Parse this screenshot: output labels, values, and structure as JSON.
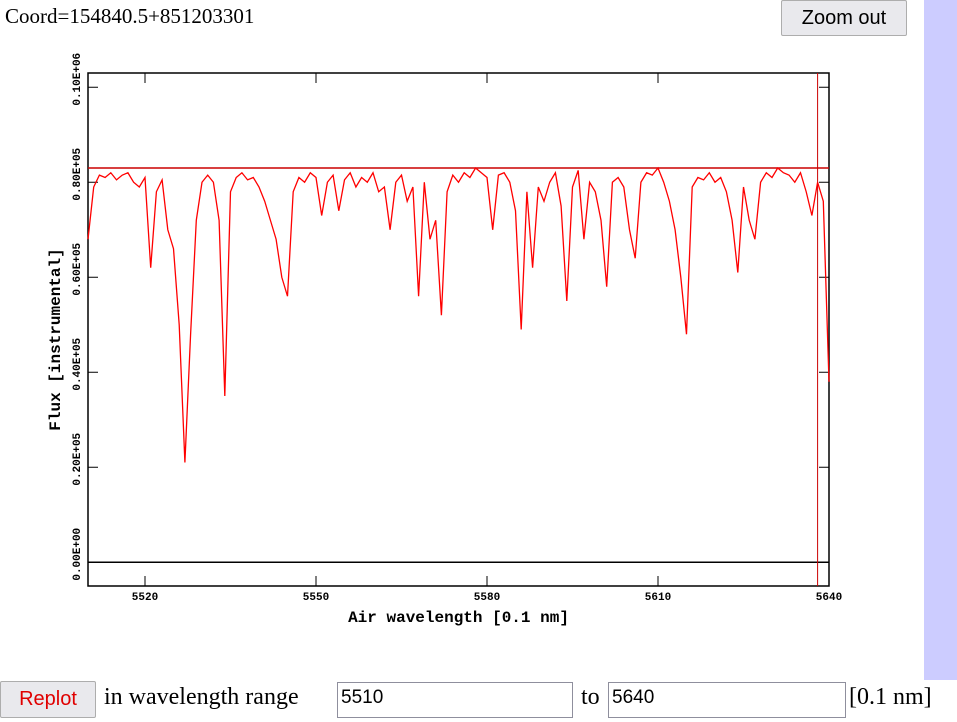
{
  "header": {
    "coord": "Coord=154840.5+851203301",
    "zoom_button": "Zoom out"
  },
  "chart_data": {
    "type": "line",
    "x_label": "Air wavelength [0.1 nm]",
    "y_label": "Flux [instrumental]",
    "x": [
      5510,
      5511,
      5512,
      5513,
      5514,
      5515,
      5516,
      5517,
      5518,
      5519,
      5520,
      5521,
      5522,
      5523,
      5524,
      5525,
      5526,
      5527,
      5528,
      5529,
      5530,
      5531,
      5532,
      5533,
      5534,
      5535,
      5536,
      5537,
      5538,
      5539,
      5540,
      5541,
      5542,
      5543,
      5544,
      5545,
      5546,
      5547,
      5548,
      5549,
      5550,
      5551,
      5552,
      5553,
      5554,
      5555,
      5556,
      5557,
      5558,
      5559,
      5560,
      5561,
      5562,
      5563,
      5564,
      5565,
      5566,
      5567,
      5568,
      5569,
      5570,
      5571,
      5572,
      5573,
      5574,
      5575,
      5576,
      5577,
      5578,
      5579,
      5580,
      5581,
      5582,
      5583,
      5584,
      5585,
      5586,
      5587,
      5588,
      5589,
      5590,
      5591,
      5592,
      5593,
      5594,
      5595,
      5596,
      5597,
      5598,
      5599,
      5600,
      5601,
      5602,
      5603,
      5604,
      5605,
      5606,
      5607,
      5608,
      5609,
      5610,
      5611,
      5612,
      5613,
      5614,
      5615,
      5616,
      5617,
      5618,
      5619,
      5620,
      5621,
      5622,
      5623,
      5624,
      5625,
      5626,
      5627,
      5628,
      5629,
      5630,
      5631,
      5632,
      5633,
      5634,
      5635,
      5636,
      5637,
      5638,
      5639,
      5640
    ],
    "series": [
      {
        "color": "#ff0000",
        "values": [
          68000,
          79000,
          81500,
          81000,
          82000,
          80500,
          81500,
          82000,
          80000,
          79000,
          81000,
          62000,
          78000,
          80500,
          70000,
          66000,
          50000,
          21000,
          48000,
          72000,
          80000,
          81500,
          80000,
          72000,
          35000,
          78000,
          81000,
          82000,
          80500,
          81000,
          79000,
          76000,
          72000,
          68000,
          60000,
          56000,
          78000,
          81000,
          80000,
          82000,
          81000,
          73000,
          80000,
          81500,
          74000,
          80500,
          82000,
          79000,
          81000,
          80000,
          82000,
          78000,
          79000,
          70000,
          80000,
          81500,
          76000,
          79000,
          56000,
          80000,
          68000,
          72000,
          52000,
          78000,
          81500,
          80000,
          82000,
          81000,
          83000,
          82000,
          81000,
          70000,
          81500,
          82000,
          80000,
          74000,
          49000,
          78000,
          62000,
          79000,
          76000,
          80000,
          82000,
          75000,
          55000,
          79000,
          82500,
          68000,
          80000,
          78000,
          72000,
          58000,
          80000,
          81000,
          79000,
          70000,
          64000,
          80000,
          82000,
          81500,
          83000,
          80000,
          76000,
          70000,
          60000,
          48000,
          79000,
          81000,
          80500,
          82000,
          80000,
          81000,
          78000,
          72000,
          61000,
          79000,
          72000,
          68000,
          80000,
          82000,
          81000,
          83000,
          82000,
          81500,
          80000,
          82000,
          78000,
          73000,
          80000,
          76000,
          38000
        ]
      }
    ],
    "xlim": [
      5510,
      5640
    ],
    "xticks": [
      5520,
      5550,
      5580,
      5610,
      5640
    ],
    "ylim": [
      -5000,
      103000
    ],
    "yticks": [
      {
        "value": 0,
        "label": "0.00E+00"
      },
      {
        "value": 20000,
        "label": "0.20E+05"
      },
      {
        "value": 40000,
        "label": "0.40E+05"
      },
      {
        "value": 60000,
        "label": "0.60E+05"
      },
      {
        "value": 80000,
        "label": "0.80E+05"
      },
      {
        "value": 100000,
        "label": "0.10E+06"
      }
    ],
    "reference_lines": [
      {
        "axis": "y",
        "value": 83000,
        "color": "#cc0000"
      },
      {
        "axis": "y",
        "value": 0,
        "color": "#000000"
      },
      {
        "axis": "x",
        "value": 5638,
        "color": "#cc0000"
      }
    ]
  },
  "form": {
    "button": "Replot",
    "label": "in wavelength range",
    "from": "5510",
    "to_label": "to",
    "to": "5640",
    "unit": "[0.1 nm]"
  }
}
